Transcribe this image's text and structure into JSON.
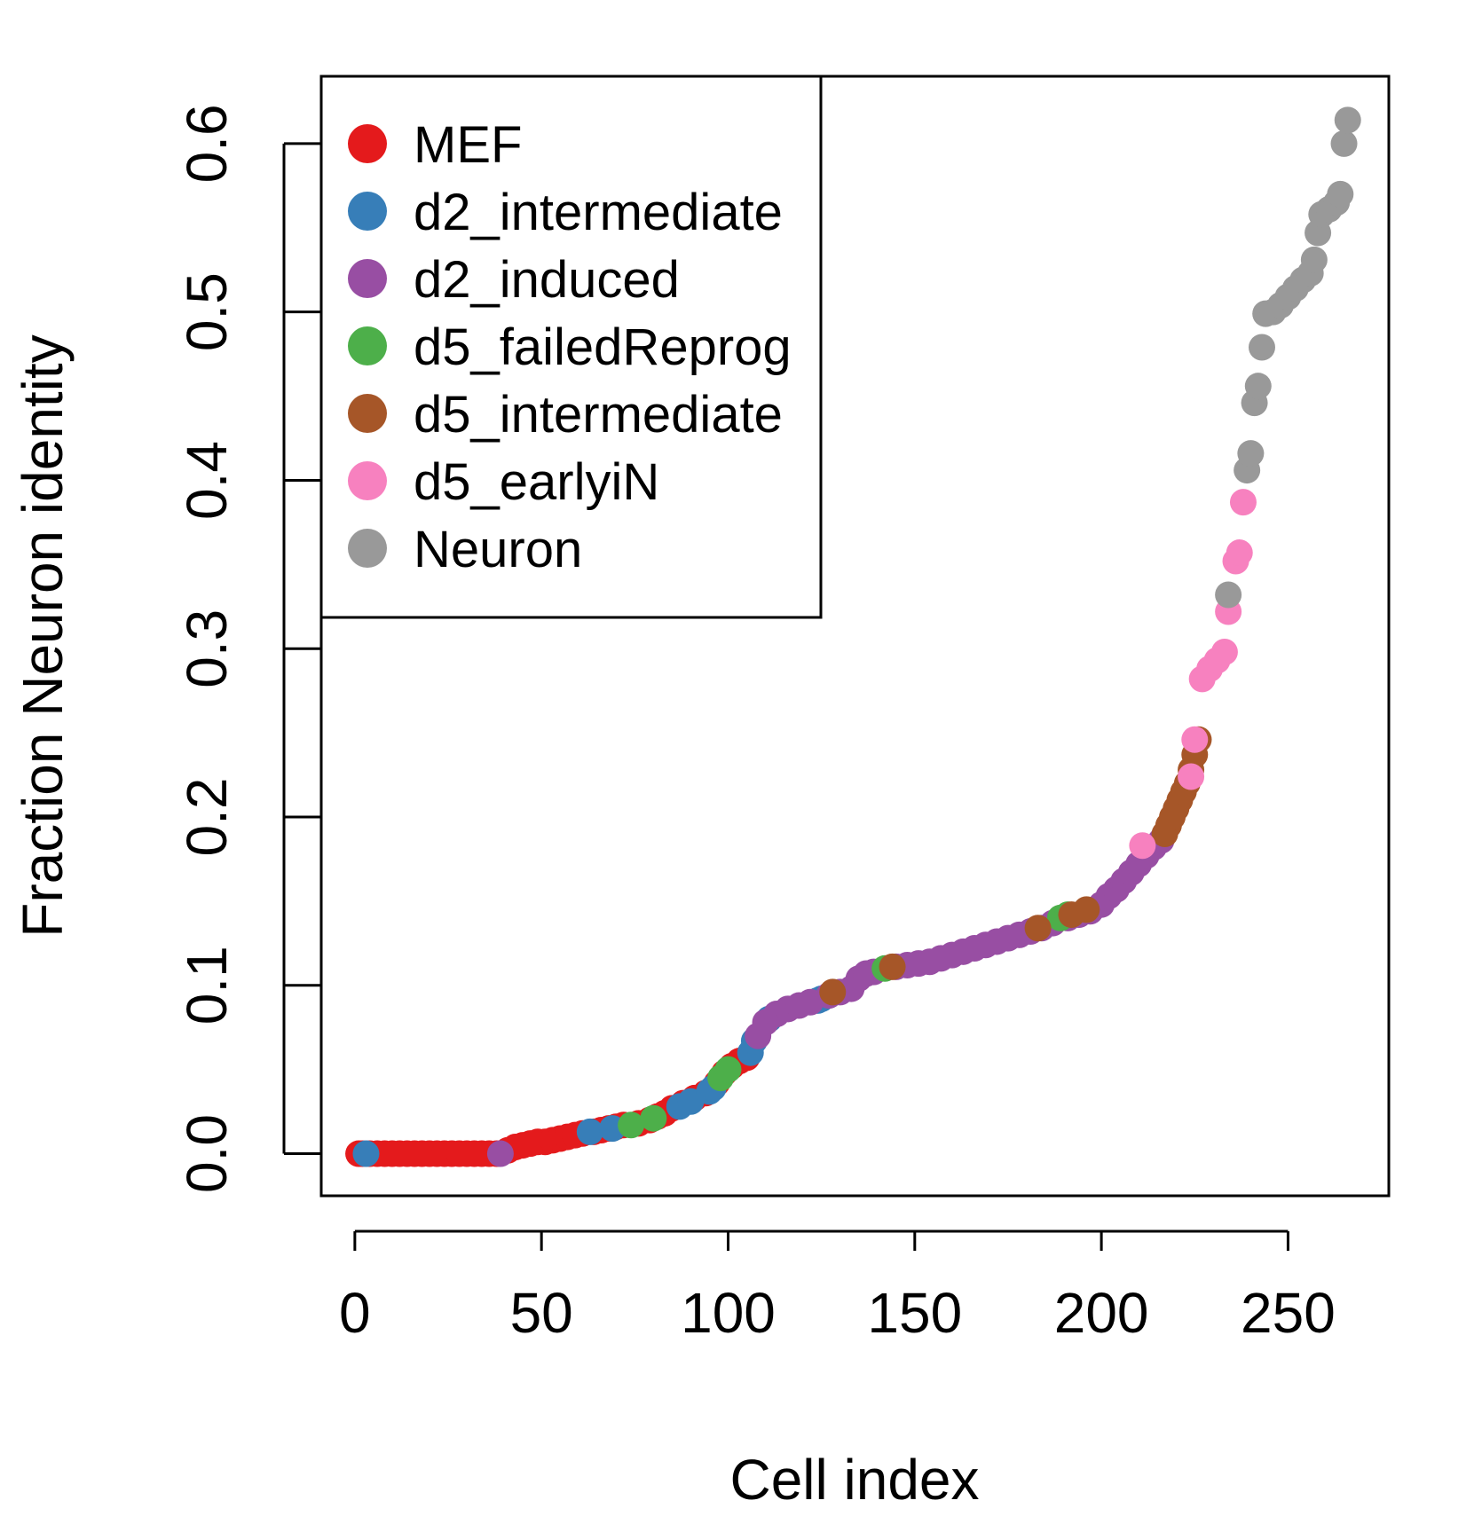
{
  "chart_data": {
    "type": "scatter",
    "title": "",
    "xlabel": "Cell index",
    "ylabel": "Fraction Neuron identity",
    "xlim": [
      -9,
      277
    ],
    "ylim": [
      -0.025,
      0.64
    ],
    "xticks": [
      "0",
      "50",
      "100",
      "150",
      "200",
      "250"
    ],
    "xtick_values": [
      0,
      50,
      100,
      150,
      200,
      250
    ],
    "yticks": [
      "0.0",
      "0.1",
      "0.2",
      "0.3",
      "0.4",
      "0.5",
      "0.6"
    ],
    "ytick_values": [
      0.0,
      0.1,
      0.2,
      0.3,
      0.4,
      0.5,
      0.6
    ],
    "grid": false,
    "legend_position": "top-left",
    "series": [
      {
        "name": "MEF",
        "color": "#E41A1C",
        "points": [
          [
            1,
            0
          ],
          [
            2,
            0
          ],
          [
            4,
            0
          ],
          [
            6,
            0
          ],
          [
            8,
            0
          ],
          [
            10,
            0
          ],
          [
            12,
            0
          ],
          [
            14,
            0
          ],
          [
            16,
            0
          ],
          [
            18,
            0
          ],
          [
            20,
            0
          ],
          [
            22,
            0
          ],
          [
            24,
            0
          ],
          [
            26,
            0
          ],
          [
            28,
            0
          ],
          [
            30,
            0
          ],
          [
            32,
            0
          ],
          [
            34,
            0
          ],
          [
            36,
            0
          ],
          [
            38,
            0
          ],
          [
            41,
            0.002
          ],
          [
            43,
            0.004
          ],
          [
            45,
            0.005
          ],
          [
            47,
            0.006
          ],
          [
            49,
            0.007
          ],
          [
            51,
            0.007
          ],
          [
            53,
            0.008
          ],
          [
            55,
            0.009
          ],
          [
            57,
            0.01
          ],
          [
            59,
            0.011
          ],
          [
            61,
            0.012
          ],
          [
            64,
            0.013
          ],
          [
            66,
            0.014
          ],
          [
            68,
            0.015
          ],
          [
            70,
            0.016
          ],
          [
            72,
            0.017
          ],
          [
            76,
            0.018
          ],
          [
            79,
            0.02
          ],
          [
            81,
            0.022
          ],
          [
            83,
            0.024
          ],
          [
            85,
            0.027
          ],
          [
            88,
            0.03
          ],
          [
            91,
            0.033
          ],
          [
            94,
            0.036
          ],
          [
            97,
            0.042
          ],
          [
            99,
            0.048
          ],
          [
            101,
            0.052
          ],
          [
            103,
            0.055
          ],
          [
            105,
            0.057
          ]
        ]
      },
      {
        "name": "d2_intermediate",
        "color": "#377EB8",
        "points": [
          [
            3,
            0
          ],
          [
            63,
            0.013
          ],
          [
            69,
            0.015
          ],
          [
            87,
            0.028
          ],
          [
            90,
            0.031
          ],
          [
            95,
            0.037
          ],
          [
            96,
            0.039
          ],
          [
            106,
            0.06
          ],
          [
            107,
            0.067
          ],
          [
            111,
            0.08
          ],
          [
            124,
            0.091
          ],
          [
            125,
            0.092
          ]
        ]
      },
      {
        "name": "d2_induced",
        "color": "#984EA3",
        "points": [
          [
            39,
            0
          ],
          [
            108,
            0.07
          ],
          [
            110,
            0.078
          ],
          [
            113,
            0.083
          ],
          [
            116,
            0.086
          ],
          [
            119,
            0.088
          ],
          [
            122,
            0.09
          ],
          [
            127,
            0.094
          ],
          [
            130,
            0.096
          ],
          [
            133,
            0.098
          ],
          [
            135,
            0.104
          ],
          [
            137,
            0.107
          ],
          [
            139,
            0.108
          ],
          [
            145,
            0.111
          ],
          [
            148,
            0.112
          ],
          [
            151,
            0.113
          ],
          [
            154,
            0.114
          ],
          [
            157,
            0.116
          ],
          [
            160,
            0.118
          ],
          [
            163,
            0.12
          ],
          [
            166,
            0.122
          ],
          [
            169,
            0.124
          ],
          [
            172,
            0.126
          ],
          [
            175,
            0.128
          ],
          [
            178,
            0.13
          ],
          [
            181,
            0.132
          ],
          [
            184,
            0.134
          ],
          [
            187,
            0.137
          ],
          [
            191,
            0.14
          ],
          [
            194,
            0.142
          ],
          [
            197,
            0.144
          ],
          [
            200,
            0.148
          ],
          [
            202,
            0.153
          ],
          [
            204,
            0.157
          ],
          [
            206,
            0.162
          ],
          [
            208,
            0.167
          ],
          [
            210,
            0.172
          ],
          [
            212,
            0.177
          ],
          [
            214,
            0.182
          ],
          [
            216,
            0.186
          ]
        ]
      },
      {
        "name": "d5_failedReprog",
        "color": "#4DAF4A",
        "points": [
          [
            74,
            0.017
          ],
          [
            80,
            0.021
          ],
          [
            98,
            0.045
          ],
          [
            100,
            0.05
          ],
          [
            142,
            0.11
          ],
          [
            189,
            0.14
          ],
          [
            191,
            0.142
          ]
        ]
      },
      {
        "name": "d5_intermediate",
        "color": "#A65628",
        "points": [
          [
            128,
            0.096
          ],
          [
            144,
            0.111
          ],
          [
            183,
            0.134
          ],
          [
            192,
            0.142
          ],
          [
            196,
            0.145
          ],
          [
            217,
            0.19
          ],
          [
            218,
            0.195
          ],
          [
            219,
            0.2
          ],
          [
            220,
            0.205
          ],
          [
            221,
            0.21
          ],
          [
            222,
            0.215
          ],
          [
            223,
            0.22
          ],
          [
            224,
            0.228
          ],
          [
            225,
            0.237
          ],
          [
            226,
            0.246
          ]
        ]
      },
      {
        "name": "d5_earlyiN",
        "color": "#F781BF",
        "points": [
          [
            211,
            0.183
          ],
          [
            224,
            0.224
          ],
          [
            225,
            0.246
          ],
          [
            227,
            0.282
          ],
          [
            229,
            0.288
          ],
          [
            231,
            0.293
          ],
          [
            233,
            0.298
          ],
          [
            234,
            0.322
          ],
          [
            236,
            0.352
          ],
          [
            237,
            0.357
          ],
          [
            238,
            0.387
          ]
        ]
      },
      {
        "name": "Neuron",
        "color": "#999999",
        "points": [
          [
            234,
            0.332
          ],
          [
            239,
            0.406
          ],
          [
            240,
            0.416
          ],
          [
            241,
            0.446
          ],
          [
            242,
            0.456
          ],
          [
            243,
            0.479
          ],
          [
            244,
            0.499
          ],
          [
            246,
            0.5
          ],
          [
            248,
            0.504
          ],
          [
            250,
            0.509
          ],
          [
            252,
            0.514
          ],
          [
            254,
            0.519
          ],
          [
            256,
            0.523
          ],
          [
            257,
            0.531
          ],
          [
            258,
            0.547
          ],
          [
            259,
            0.558
          ],
          [
            261,
            0.561
          ],
          [
            263,
            0.565
          ],
          [
            264,
            0.57
          ],
          [
            265,
            0.6
          ],
          [
            266,
            0.614
          ]
        ]
      }
    ]
  }
}
